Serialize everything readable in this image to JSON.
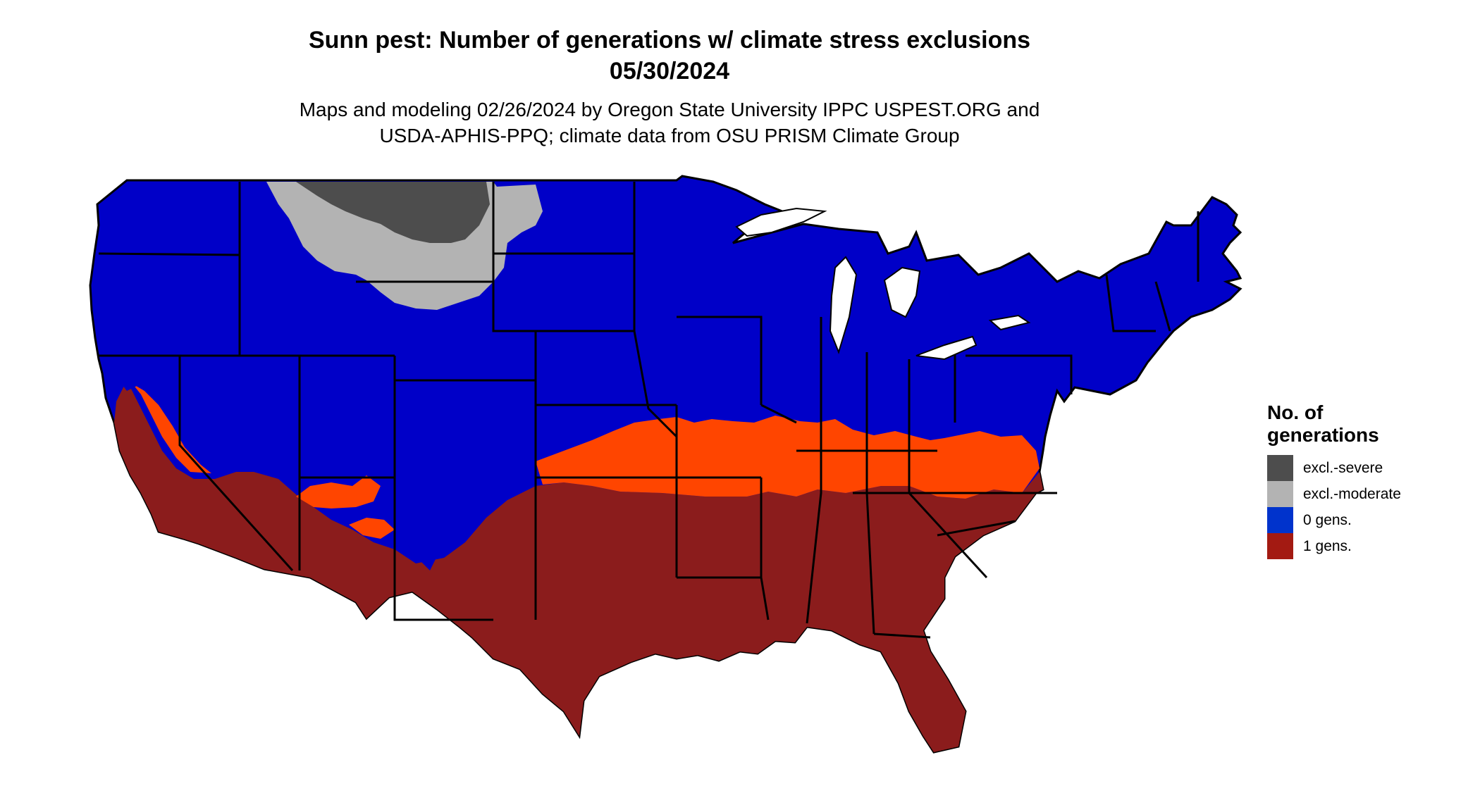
{
  "header": {
    "title": "Sunn pest: Number of generations w/ climate stress exclusions",
    "date": "05/30/2024",
    "subtitle_line1": "Maps and modeling 02/26/2024 by Oregon State University IPPC USPEST.ORG and",
    "subtitle_line2": "USDA-APHIS-PPQ; climate data from OSU PRISM Climate Group"
  },
  "legend": {
    "title_line1": "No. of",
    "title_line2": "generations",
    "items": [
      {
        "label": "excl.-severe",
        "color": "#4d4d4d"
      },
      {
        "label": "excl.-moderate",
        "color": "#b3b3b3"
      },
      {
        "label": "0 gens.",
        "color": "#0033cc"
      },
      {
        "label": "1 gens.",
        "color": "#a31a12"
      }
    ]
  },
  "map_colors": {
    "zero_gens_region": "#0000c8",
    "one_gen_region": "#8b1c1c",
    "transition_band": "#ff4500",
    "excl_severe": "#4d4d4d",
    "excl_moderate": "#b3b3b3",
    "state_borders": "#000000"
  }
}
